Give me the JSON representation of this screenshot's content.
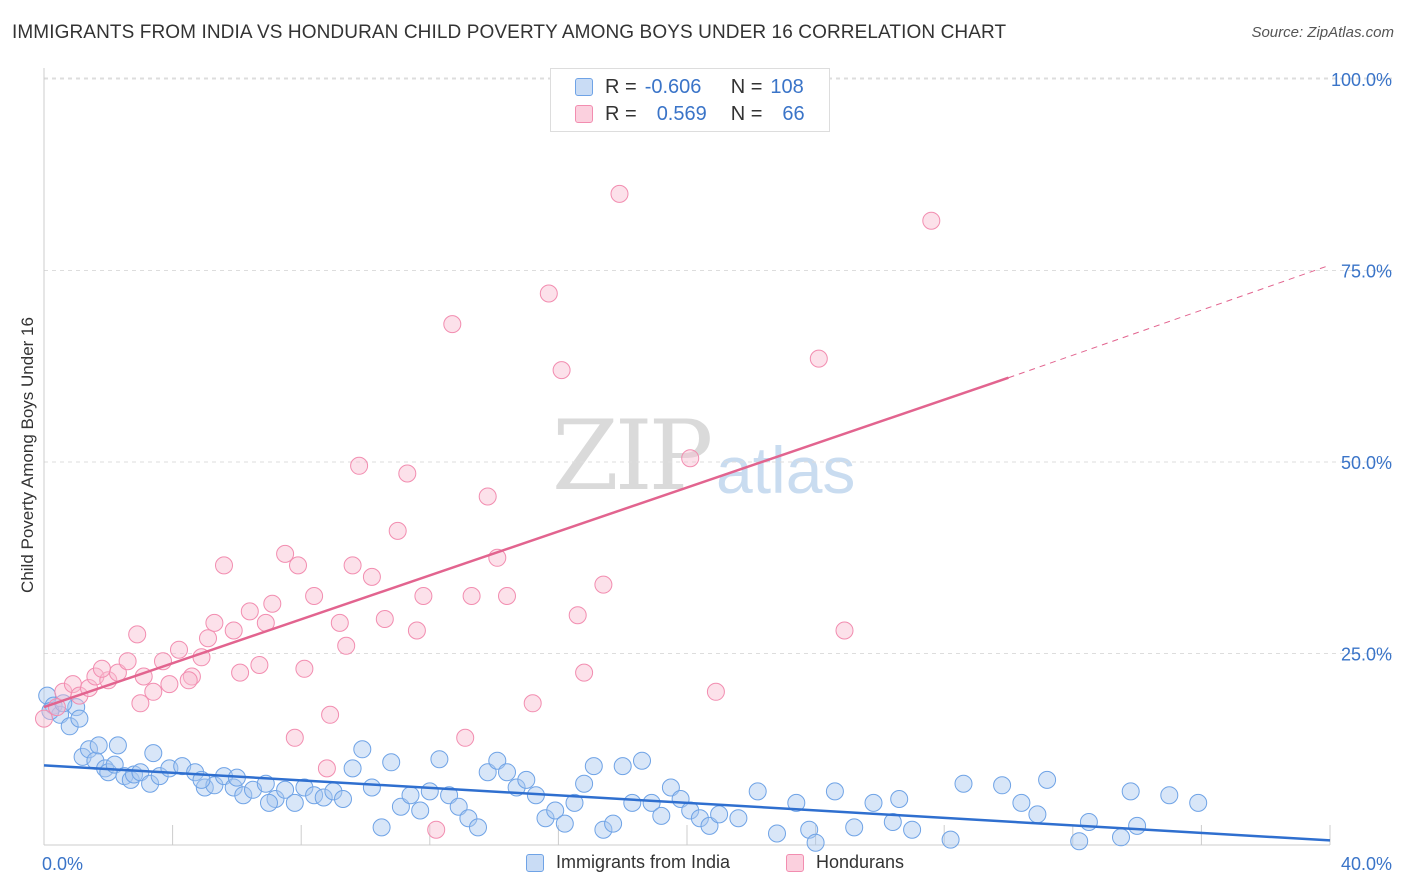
{
  "header": {
    "title": "IMMIGRANTS FROM INDIA VS HONDURAN CHILD POVERTY AMONG BOYS UNDER 16 CORRELATION CHART",
    "source": "Source: ZipAtlas.com"
  },
  "watermark": {
    "zip": "ZIP",
    "atlas": "atlas"
  },
  "legend": {
    "rows": [
      {
        "r_label": "R =",
        "r_value": "-0.606",
        "n_label": "N =",
        "n_value": "108",
        "color": "#6fa3e6"
      },
      {
        "r_label": "R =",
        "r_value": "0.569",
        "n_label": "N =",
        "n_value": "66",
        "color": "#f28db0"
      }
    ]
  },
  "bottom_legend": {
    "india": "Immigrants from India",
    "honduran": "Hondurans"
  },
  "colors": {
    "blue": "#6fa3e6",
    "blue_line": "#2f6fcf",
    "pink": "#f28db0",
    "pink_line": "#e2648f",
    "axis_text": "#3a74c8"
  },
  "chart_data": {
    "type": "scatter",
    "title": "IMMIGRANTS FROM INDIA VS HONDURAN CHILD POVERTY AMONG BOYS UNDER 16 CORRELATION CHART",
    "xlabel": "",
    "ylabel": "Child Poverty Among Boys Under 16",
    "xlim": [
      0,
      40
    ],
    "ylim": [
      0,
      105
    ],
    "x_tick_labels": [
      "0.0%",
      "40.0%"
    ],
    "y_ticks": [
      25,
      50,
      75,
      100
    ],
    "y_tick_labels": [
      "25.0%",
      "50.0%",
      "75.0%",
      "100.0%"
    ],
    "grid": true,
    "legend_position": "top-center",
    "series": [
      {
        "name": "Immigrants from India",
        "color": "#6fa3e6",
        "trend": {
          "x0": 0,
          "y0": 10.4,
          "x1": 40,
          "y1": 0.6
        },
        "points": [
          [
            0.1,
            19.5
          ],
          [
            0.3,
            18.2
          ],
          [
            0.5,
            17.0
          ],
          [
            0.8,
            15.5
          ],
          [
            1.0,
            18.0
          ],
          [
            1.2,
            11.5
          ],
          [
            1.4,
            12.5
          ],
          [
            1.6,
            11.0
          ],
          [
            1.7,
            13.0
          ],
          [
            1.9,
            10.0
          ],
          [
            2.0,
            9.5
          ],
          [
            2.2,
            10.5
          ],
          [
            2.5,
            9.0
          ],
          [
            2.7,
            8.5
          ],
          [
            2.8,
            9.2
          ],
          [
            3.0,
            9.5
          ],
          [
            3.3,
            8.0
          ],
          [
            3.6,
            9.0
          ],
          [
            3.9,
            10.0
          ],
          [
            4.3,
            10.3
          ],
          [
            4.7,
            9.5
          ],
          [
            5.0,
            7.5
          ],
          [
            5.3,
            7.8
          ],
          [
            5.6,
            9.0
          ],
          [
            5.9,
            7.5
          ],
          [
            6.2,
            6.5
          ],
          [
            6.5,
            7.2
          ],
          [
            6.9,
            8.0
          ],
          [
            7.2,
            6.0
          ],
          [
            7.5,
            7.2
          ],
          [
            7.8,
            5.5
          ],
          [
            8.1,
            7.5
          ],
          [
            8.4,
            6.5
          ],
          [
            8.7,
            6.2
          ],
          [
            9.0,
            7.0
          ],
          [
            9.3,
            6.0
          ],
          [
            9.6,
            10.0
          ],
          [
            9.9,
            12.5
          ],
          [
            10.2,
            7.5
          ],
          [
            10.5,
            2.3
          ],
          [
            10.8,
            10.8
          ],
          [
            11.1,
            5.0
          ],
          [
            11.4,
            6.5
          ],
          [
            11.7,
            4.5
          ],
          [
            12.0,
            7.0
          ],
          [
            12.3,
            11.2
          ],
          [
            12.6,
            6.5
          ],
          [
            12.9,
            5.0
          ],
          [
            13.2,
            3.5
          ],
          [
            13.5,
            2.3
          ],
          [
            13.8,
            9.5
          ],
          [
            14.1,
            11.0
          ],
          [
            14.4,
            9.5
          ],
          [
            14.7,
            7.5
          ],
          [
            15.0,
            8.5
          ],
          [
            15.3,
            6.5
          ],
          [
            15.6,
            3.5
          ],
          [
            15.9,
            4.5
          ],
          [
            16.2,
            2.8
          ],
          [
            16.5,
            5.5
          ],
          [
            16.8,
            8.0
          ],
          [
            17.1,
            10.3
          ],
          [
            17.4,
            2.0
          ],
          [
            17.7,
            2.8
          ],
          [
            18.0,
            10.3
          ],
          [
            18.3,
            5.5
          ],
          [
            18.6,
            11.0
          ],
          [
            18.9,
            5.5
          ],
          [
            19.2,
            3.8
          ],
          [
            19.5,
            7.5
          ],
          [
            19.8,
            6.0
          ],
          [
            20.1,
            4.5
          ],
          [
            20.4,
            3.5
          ],
          [
            20.7,
            2.5
          ],
          [
            21.0,
            4.0
          ],
          [
            21.6,
            3.5
          ],
          [
            22.2,
            7.0
          ],
          [
            22.8,
            1.5
          ],
          [
            23.4,
            5.5
          ],
          [
            23.8,
            2.0
          ],
          [
            24.0,
            0.3
          ],
          [
            24.6,
            7.0
          ],
          [
            25.2,
            2.3
          ],
          [
            25.8,
            5.5
          ],
          [
            26.4,
            3.0
          ],
          [
            27.0,
            2.0
          ],
          [
            26.6,
            6.0
          ],
          [
            28.2,
            0.7
          ],
          [
            28.6,
            8.0
          ],
          [
            29.8,
            7.8
          ],
          [
            31.2,
            8.5
          ],
          [
            30.4,
            5.5
          ],
          [
            30.9,
            4.0
          ],
          [
            32.5,
            3.0
          ],
          [
            33.8,
            7.0
          ],
          [
            35.0,
            6.5
          ],
          [
            35.9,
            5.5
          ],
          [
            32.2,
            0.5
          ],
          [
            33.5,
            1.0
          ],
          [
            34.0,
            2.5
          ],
          [
            0.2,
            17.5
          ],
          [
            0.6,
            18.5
          ],
          [
            1.1,
            16.5
          ],
          [
            2.3,
            13.0
          ],
          [
            3.4,
            12.0
          ],
          [
            4.9,
            8.5
          ],
          [
            6.0,
            8.8
          ],
          [
            7.0,
            5.5
          ]
        ]
      },
      {
        "name": "Hondurans",
        "color": "#f28db0",
        "trend": {
          "x0": 0,
          "y0": 18.0,
          "x1": 30.0,
          "y1": 61.0,
          "dash_x1": 40.0,
          "dash_y1": 75.7
        },
        "points": [
          [
            0.0,
            16.5
          ],
          [
            0.4,
            18.0
          ],
          [
            0.6,
            20.0
          ],
          [
            0.9,
            21.0
          ],
          [
            1.1,
            19.5
          ],
          [
            1.4,
            20.5
          ],
          [
            1.6,
            22.0
          ],
          [
            2.0,
            21.5
          ],
          [
            2.3,
            22.5
          ],
          [
            2.6,
            24.0
          ],
          [
            2.9,
            27.5
          ],
          [
            3.1,
            22.0
          ],
          [
            3.4,
            20.0
          ],
          [
            3.7,
            24.0
          ],
          [
            3.9,
            21.0
          ],
          [
            4.2,
            25.5
          ],
          [
            4.6,
            22.0
          ],
          [
            4.9,
            24.5
          ],
          [
            5.1,
            27.0
          ],
          [
            5.3,
            29.0
          ],
          [
            5.6,
            36.5
          ],
          [
            5.9,
            28.0
          ],
          [
            6.1,
            22.5
          ],
          [
            6.4,
            30.5
          ],
          [
            6.7,
            23.5
          ],
          [
            6.9,
            29.0
          ],
          [
            7.1,
            31.5
          ],
          [
            7.5,
            38.0
          ],
          [
            7.8,
            14.0
          ],
          [
            7.9,
            36.5
          ],
          [
            8.1,
            23.0
          ],
          [
            8.4,
            32.5
          ],
          [
            8.8,
            10.0
          ],
          [
            8.9,
            17.0
          ],
          [
            9.2,
            29.0
          ],
          [
            9.4,
            26.0
          ],
          [
            9.6,
            36.5
          ],
          [
            9.8,
            49.5
          ],
          [
            10.2,
            35.0
          ],
          [
            10.6,
            29.5
          ],
          [
            11.0,
            41.0
          ],
          [
            11.3,
            48.5
          ],
          [
            11.6,
            28.0
          ],
          [
            11.8,
            32.5
          ],
          [
            12.2,
            2.0
          ],
          [
            12.7,
            68.0
          ],
          [
            13.1,
            14.0
          ],
          [
            13.3,
            32.5
          ],
          [
            13.8,
            45.5
          ],
          [
            14.1,
            37.5
          ],
          [
            14.4,
            32.5
          ],
          [
            15.2,
            18.5
          ],
          [
            15.7,
            72.0
          ],
          [
            16.1,
            62.0
          ],
          [
            16.6,
            30.0
          ],
          [
            16.8,
            22.5
          ],
          [
            17.4,
            34.0
          ],
          [
            17.9,
            85.0
          ],
          [
            20.1,
            50.5
          ],
          [
            20.9,
            20.0
          ],
          [
            24.1,
            63.5
          ],
          [
            24.9,
            28.0
          ],
          [
            27.6,
            81.5
          ],
          [
            1.8,
            23.0
          ],
          [
            3.0,
            18.5
          ],
          [
            4.5,
            21.5
          ]
        ]
      }
    ]
  }
}
